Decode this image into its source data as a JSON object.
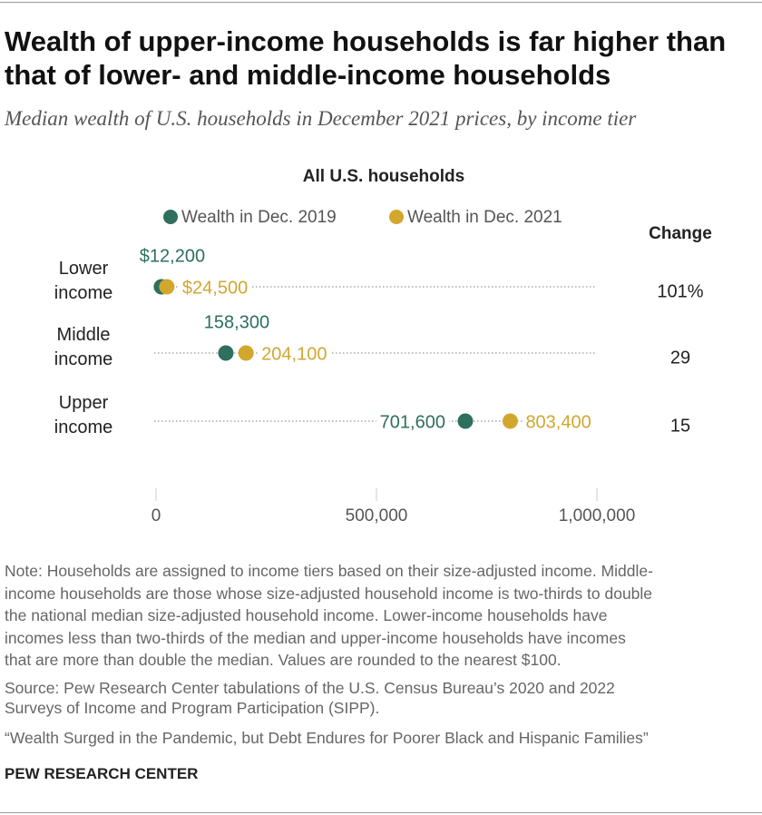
{
  "chart_data": {
    "type": "dot",
    "title": "Wealth of upper-income households is far higher than that of lower- and middle-income households",
    "subtitle": "Median wealth of U.S. households in December 2021 prices, by income tier",
    "panel_title": "All U.S. households",
    "categories": [
      "Lower income",
      "Middle income",
      "Upper income"
    ],
    "series": [
      {
        "name": "Wealth in Dec. 2019",
        "color": "#2e6f5e",
        "values": [
          12200,
          158300,
          701600
        ],
        "value_labels": [
          "$12,200",
          "158,300",
          "701,600"
        ]
      },
      {
        "name": "Wealth in Dec. 2021",
        "color": "#d1a72e",
        "values": [
          24500,
          204100,
          803400
        ],
        "value_labels": [
          "$24,500",
          "204,100",
          "803,400"
        ]
      }
    ],
    "change": {
      "header": "Change",
      "values": [
        101,
        29,
        15
      ],
      "value_labels": [
        "101%",
        "29",
        "15"
      ]
    },
    "xlim": [
      0,
      1000000
    ],
    "xticks": [
      0,
      {
        "value": 500000,
        "label": "500,000"
      },
      {
        "value": 1000000,
        "label": "1,000,000"
      }
    ],
    "grid": false,
    "legend": "top"
  },
  "note": [
    "Note: Households are assigned to income tiers based on their size-adjusted income. Middle-",
    "income households are those whose size-adjusted household income is two-thirds to double",
    "the national median size-adjusted household income. Lower-income households have",
    "incomes less than two-thirds of the median and upper-income households have incomes",
    "that are more than double the median. Values are rounded to the nearest $100."
  ],
  "source": [
    "Source: Pew Research Center tabulations of the U.S. Census Bureau’s 2020 and 2022",
    "Surveys of Income and Program Participation (SIPP)."
  ],
  "citation": "“Wealth Surged in the Pandemic, but Debt Endures for Poorer Black and Hispanic Families”",
  "footer": "PEW RESEARCH CENTER"
}
